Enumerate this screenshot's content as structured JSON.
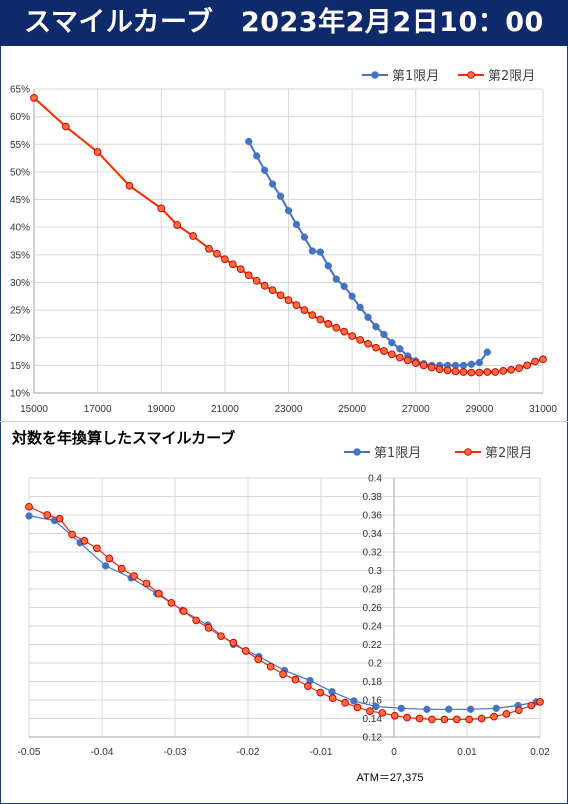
{
  "header": {
    "title": "スマイルカーブ　2023年2月2日10：00"
  },
  "colors": {
    "series1": "#4472c4",
    "series2": "#ff2a00",
    "series2_fill": "#ff6a3a",
    "header_bg": "#0f2a6b"
  },
  "chart_data": [
    {
      "type": "line",
      "title": "",
      "xlim": [
        15000,
        31000
      ],
      "ylim": [
        0.1,
        0.65
      ],
      "x_ticks": [
        15000,
        17000,
        19000,
        21000,
        23000,
        25000,
        27000,
        29000,
        31000
      ],
      "x_tick_labels": [
        "15000",
        "17000",
        "19000",
        "21000",
        "23000",
        "25000",
        "27000",
        "29000",
        "31000"
      ],
      "y_ticks": [
        0.1,
        0.15,
        0.2,
        0.25,
        0.3,
        0.35,
        0.4,
        0.45,
        0.5,
        0.55,
        0.6,
        0.65
      ],
      "y_tick_labels": [
        "10%",
        "15%",
        "20%",
        "25%",
        "30%",
        "35%",
        "40%",
        "45%",
        "50%",
        "55%",
        "60%",
        "65%"
      ],
      "grid": true,
      "legend": "top-right",
      "series": [
        {
          "name": "第1限月",
          "x": [
            21750,
            22000,
            22250,
            22500,
            22750,
            23000,
            23250,
            23500,
            23750,
            24000,
            24250,
            24500,
            24750,
            25000,
            25250,
            25500,
            25750,
            26000,
            26250,
            26500,
            26750,
            27000,
            27250,
            27500,
            27750,
            28000,
            28250,
            28500,
            28750,
            29000,
            29250
          ],
          "y": [
            0.555,
            0.529,
            0.503,
            0.478,
            0.456,
            0.43,
            0.405,
            0.382,
            0.357,
            0.355,
            0.33,
            0.306,
            0.293,
            0.275,
            0.255,
            0.237,
            0.22,
            0.206,
            0.191,
            0.18,
            0.167,
            0.158,
            0.153,
            0.15,
            0.15,
            0.15,
            0.15,
            0.15,
            0.152,
            0.155,
            0.174
          ]
        },
        {
          "name": "第2限月",
          "x": [
            15000,
            16000,
            17000,
            18000,
            19000,
            19500,
            20000,
            20500,
            20750,
            21000,
            21250,
            21500,
            21750,
            22000,
            22250,
            22500,
            22750,
            23000,
            23250,
            23500,
            23750,
            24000,
            24250,
            24500,
            24750,
            25000,
            25250,
            25500,
            25750,
            26000,
            26250,
            26500,
            26750,
            27000,
            27250,
            27500,
            27750,
            28000,
            28250,
            28500,
            28750,
            29000,
            29250,
            29500,
            29750,
            30000,
            30250,
            30500,
            30750,
            31000
          ],
          "y": [
            0.634,
            0.582,
            0.536,
            0.475,
            0.434,
            0.404,
            0.384,
            0.361,
            0.352,
            0.342,
            0.333,
            0.324,
            0.313,
            0.303,
            0.294,
            0.286,
            0.277,
            0.268,
            0.259,
            0.25,
            0.241,
            0.233,
            0.225,
            0.218,
            0.211,
            0.203,
            0.196,
            0.189,
            0.182,
            0.176,
            0.17,
            0.164,
            0.159,
            0.154,
            0.15,
            0.146,
            0.143,
            0.141,
            0.139,
            0.138,
            0.137,
            0.137,
            0.138,
            0.138,
            0.14,
            0.142,
            0.145,
            0.15,
            0.157,
            0.161
          ]
        }
      ]
    },
    {
      "type": "line",
      "title": "対数を年換算したスマイルカーブ",
      "xlim": [
        -0.05,
        0.02
      ],
      "ylim": [
        0.12,
        0.4
      ],
      "x_ticks": [
        -0.05,
        -0.04,
        -0.03,
        -0.02,
        -0.01,
        0,
        0.01,
        0.02
      ],
      "x_tick_labels": [
        "-0.05",
        "-0.04",
        "-0.03",
        "-0.02",
        "-0.01",
        "0",
        "0.01",
        "0.02"
      ],
      "y_ticks": [
        0.12,
        0.14,
        0.16,
        0.18,
        0.2,
        0.22,
        0.24,
        0.26,
        0.28,
        0.3,
        0.32,
        0.34,
        0.36,
        0.38,
        0.4
      ],
      "y_tick_labels": [
        "0.12",
        "0.14",
        "0.16",
        "0.18",
        "0.2",
        "0.22",
        "0.24",
        "0.26",
        "0.28",
        "0.3",
        "0.32",
        "0.34",
        "0.36",
        "0.38",
        "0.4"
      ],
      "y_axis_at_x": 0,
      "grid": true,
      "legend": "top-right",
      "annotation": "ATM＝27,375",
      "series": [
        {
          "name": "第1限月",
          "x": [
            -0.05,
            -0.0465,
            -0.043,
            -0.0395,
            -0.036,
            -0.0325,
            -0.029,
            -0.0255,
            -0.022,
            -0.0185,
            -0.015,
            -0.0115,
            -0.0085,
            -0.0055,
            -0.0025,
            0.001,
            0.0045,
            0.0075,
            0.0105,
            0.014,
            0.017,
            0.0195
          ],
          "y": [
            0.359,
            0.354,
            0.33,
            0.305,
            0.292,
            0.275,
            0.257,
            0.241,
            0.22,
            0.207,
            0.192,
            0.181,
            0.169,
            0.159,
            0.153,
            0.151,
            0.15,
            0.15,
            0.15,
            0.151,
            0.154,
            0.158
          ]
        },
        {
          "name": "第2限月",
          "x": [
            -0.05,
            -0.0475,
            -0.0458,
            -0.0441,
            -0.0424,
            -0.0407,
            -0.039,
            -0.0373,
            -0.0356,
            -0.0339,
            -0.0322,
            -0.0305,
            -0.0288,
            -0.0271,
            -0.0254,
            -0.0237,
            -0.022,
            -0.0203,
            -0.0186,
            -0.0169,
            -0.0152,
            -0.0135,
            -0.0118,
            -0.0101,
            -0.0084,
            -0.0067,
            -0.005,
            -0.0033,
            -0.0016,
            0.0001,
            0.0018,
            0.0035,
            0.0052,
            0.0069,
            0.0086,
            0.0103,
            0.012,
            0.0137,
            0.0154,
            0.0171,
            0.0188,
            0.02
          ],
          "y": [
            0.369,
            0.36,
            0.356,
            0.339,
            0.332,
            0.324,
            0.313,
            0.302,
            0.294,
            0.286,
            0.275,
            0.265,
            0.256,
            0.246,
            0.238,
            0.229,
            0.222,
            0.213,
            0.204,
            0.196,
            0.188,
            0.182,
            0.175,
            0.168,
            0.162,
            0.157,
            0.152,
            0.148,
            0.146,
            0.143,
            0.141,
            0.14,
            0.139,
            0.139,
            0.139,
            0.139,
            0.14,
            0.142,
            0.145,
            0.149,
            0.154,
            0.158
          ]
        }
      ]
    }
  ]
}
